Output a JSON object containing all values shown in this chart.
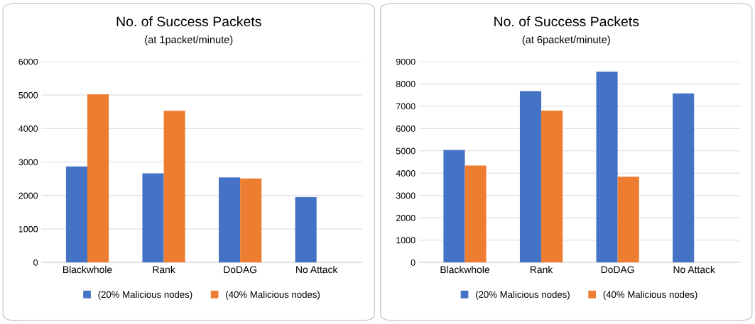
{
  "chart_data": [
    {
      "type": "bar",
      "title": "No. of Success Packets",
      "subtitle": "(at 1packet/minute)",
      "categories": [
        "Blackwhole",
        "Rank",
        "DoDAG",
        "No Attack"
      ],
      "series": [
        {
          "name": "(20% Malicious nodes)",
          "color": "#4472c4",
          "values": [
            2870,
            2660,
            2540,
            1950
          ]
        },
        {
          "name": "(40% Malicious nodes)",
          "color": "#ed7d31",
          "values": [
            5020,
            4530,
            2510,
            null
          ]
        }
      ],
      "ylim": [
        0,
        6000
      ],
      "yticks": [
        0,
        1000,
        2000,
        3000,
        4000,
        5000,
        6000
      ],
      "grid": "y",
      "legend": "bottom"
    },
    {
      "type": "bar",
      "title": "No. of Success Packets",
      "subtitle": "(at 6packet/minute)",
      "categories": [
        "Blackwhole",
        "Rank",
        "DoDAG",
        "No Attack"
      ],
      "series": [
        {
          "name": "(20% Malicious nodes)",
          "color": "#4472c4",
          "values": [
            5040,
            7680,
            8550,
            7570
          ]
        },
        {
          "name": "(40% Malicious nodes)",
          "color": "#ed7d31",
          "values": [
            4340,
            6800,
            3840,
            null
          ]
        }
      ],
      "ylim": [
        0,
        9000
      ],
      "yticks": [
        0,
        1000,
        2000,
        3000,
        4000,
        5000,
        6000,
        7000,
        8000,
        9000
      ],
      "grid": "y",
      "legend": "bottom"
    }
  ]
}
